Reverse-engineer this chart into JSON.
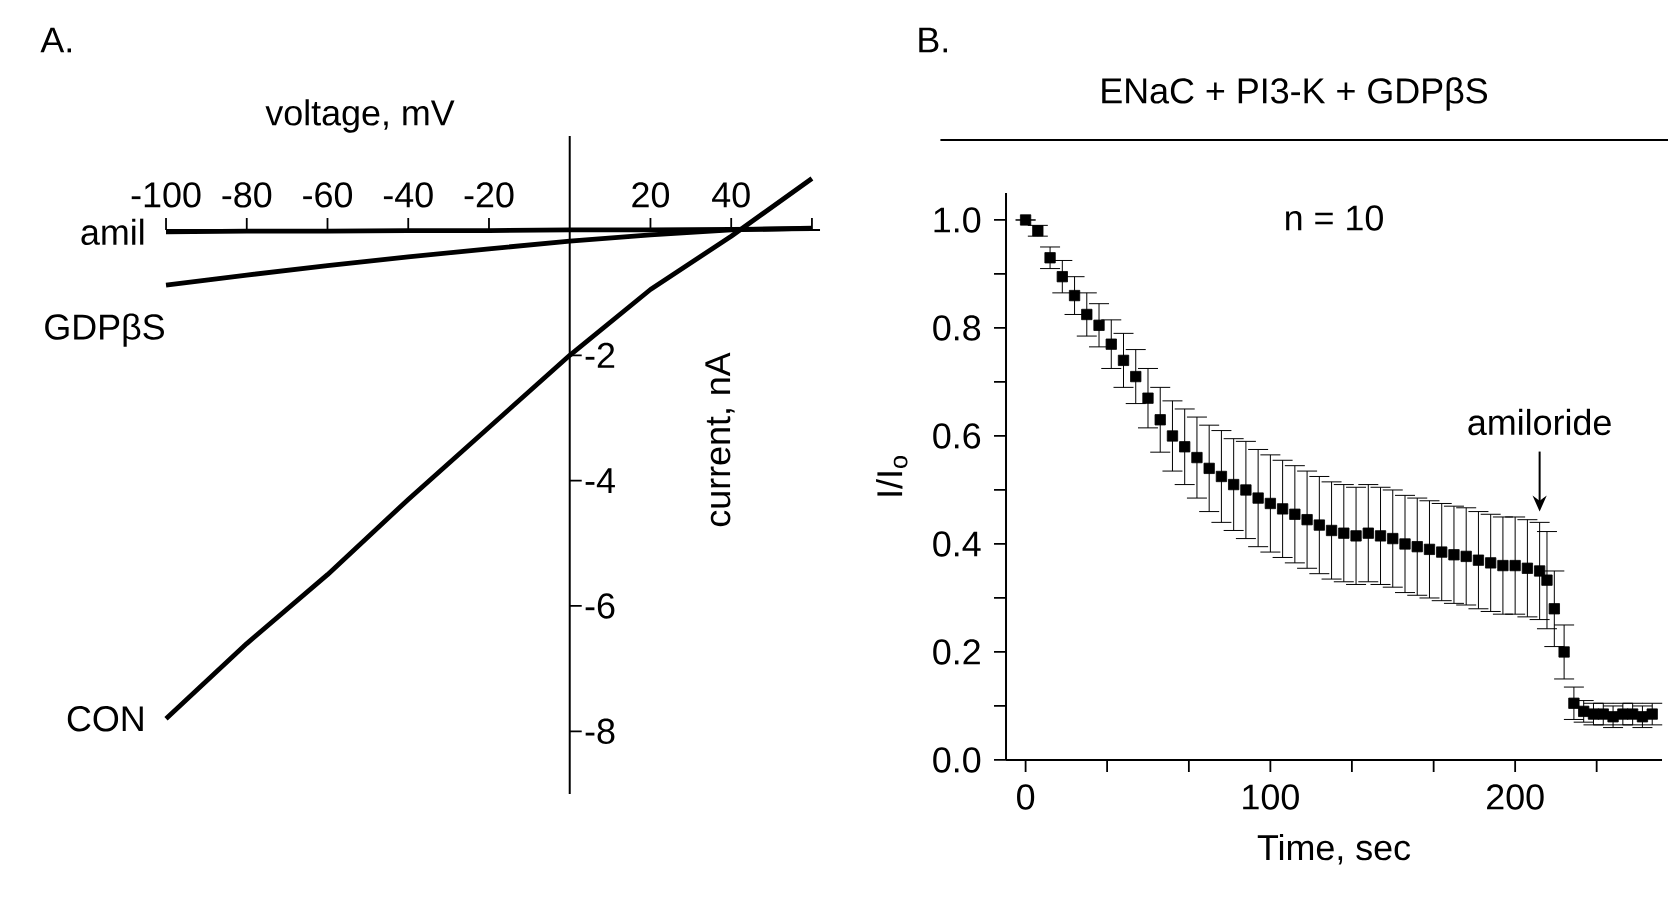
{
  "chart_data": [
    {
      "type": "line",
      "xlabel": "voltage, mV",
      "ylabel": "current, nA",
      "annotations": [
        "A."
      ],
      "x": [
        -100,
        -80,
        -60,
        -40,
        -20,
        0,
        20,
        40,
        60
      ],
      "series": [
        {
          "name": "amil",
          "color": "#000000",
          "values": [
            -0.03,
            -0.02,
            -0.02,
            -0.01,
            -0.01,
            0,
            0,
            0.01,
            0.02
          ]
        },
        {
          "name": "GDPβS",
          "color": "#000000",
          "values": [
            -0.88,
            -0.72,
            -0.57,
            -0.43,
            -0.3,
            -0.18,
            -0.08,
            0,
            0.03
          ]
        },
        {
          "name": "CON",
          "color": "#000000",
          "values": [
            -7.8,
            -6.6,
            -5.5,
            -4.3,
            -3.15,
            -2.0,
            -0.95,
            -0.1,
            0.82
          ]
        }
      ],
      "xlim": [
        -100,
        62
      ],
      "ylim": [
        -9,
        1.5
      ],
      "xticks": [
        -100,
        -80,
        -60,
        -40,
        -20,
        20,
        40,
        {
          "value": 60,
          "label": null
        }
      ],
      "yticks": [
        -2,
        -4,
        -6,
        -8
      ],
      "grid": false
    },
    {
      "type": "scatter",
      "title": "ENaC + PI3-K + GDPβS",
      "xlabel": "Time, sec",
      "ylabel": "I/I$_{o}$",
      "annotations": [
        "B.",
        "n = 10",
        {
          "text": "amiloride",
          "x": 210,
          "y": 0.46
        }
      ],
      "x": [
        0,
        5,
        10,
        15,
        20,
        25,
        30,
        35,
        40,
        45,
        50,
        55,
        60,
        65,
        70,
        75,
        80,
        85,
        90,
        95,
        100,
        105,
        110,
        115,
        120,
        125,
        130,
        135,
        140,
        145,
        150,
        155,
        160,
        165,
        170,
        175,
        180,
        185,
        190,
        195,
        200,
        205,
        210,
        213,
        216,
        220,
        224,
        228,
        232,
        236,
        240,
        244,
        248,
        252,
        256
      ],
      "series": [
        {
          "color": "#000000",
          "values": [
            1.0,
            0.98,
            0.93,
            0.895,
            0.86,
            0.825,
            0.805,
            0.77,
            0.74,
            0.71,
            0.67,
            0.63,
            0.6,
            0.58,
            0.56,
            0.54,
            0.525,
            0.51,
            0.5,
            0.485,
            0.475,
            0.465,
            0.455,
            0.445,
            0.435,
            0.425,
            0.42,
            0.415,
            0.42,
            0.415,
            0.41,
            0.4,
            0.395,
            0.39,
            0.385,
            0.38,
            0.377,
            0.37,
            0.365,
            0.36,
            0.36,
            0.355,
            0.35,
            0.333,
            0.28,
            0.2,
            0.105,
            0.09,
            0.085,
            0.085,
            0.08,
            0.085,
            0.085,
            0.08,
            0.085
          ],
          "errors": [
            0,
            0.01,
            0.02,
            0.03,
            0.035,
            0.04,
            0.04,
            0.045,
            0.05,
            0.05,
            0.055,
            0.06,
            0.065,
            0.07,
            0.075,
            0.08,
            0.085,
            0.085,
            0.09,
            0.09,
            0.09,
            0.09,
            0.09,
            0.09,
            0.09,
            0.09,
            0.09,
            0.09,
            0.09,
            0.09,
            0.09,
            0.09,
            0.09,
            0.09,
            0.09,
            0.09,
            0.09,
            0.09,
            0.09,
            0.09,
            0.09,
            0.09,
            0.09,
            0.09,
            0.07,
            0.05,
            0.03,
            0.02,
            0.02,
            0.02,
            0.02,
            0.02,
            0.02,
            0.02,
            0.02
          ]
        }
      ],
      "xlim": [
        -8,
        260
      ],
      "ylim": [
        0,
        1.05
      ],
      "xticks": [
        0,
        {
          "value": 33.3,
          "label": null
        },
        {
          "value": 66.7,
          "label": null
        },
        100,
        {
          "value": 133.3,
          "label": null
        },
        {
          "value": 166.7,
          "label": null
        },
        200,
        {
          "value": 233.3,
          "label": null
        }
      ],
      "yticks": [
        {
          "value": 0,
          "label": "0.0"
        },
        {
          "value": 0.1,
          "label": null
        },
        {
          "value": 0.2,
          "label": "0.2"
        },
        {
          "value": 0.3,
          "label": null
        },
        {
          "value": 0.4,
          "label": "0.4"
        },
        {
          "value": 0.5,
          "label": null
        },
        {
          "value": 0.6,
          "label": "0.6"
        },
        {
          "value": 0.7,
          "label": null
        },
        {
          "value": 0.8,
          "label": "0.8"
        },
        {
          "value": 0.9,
          "label": null
        },
        {
          "value": 1.0,
          "label": "1.0"
        }
      ],
      "marker": "square",
      "grid": false
    }
  ]
}
